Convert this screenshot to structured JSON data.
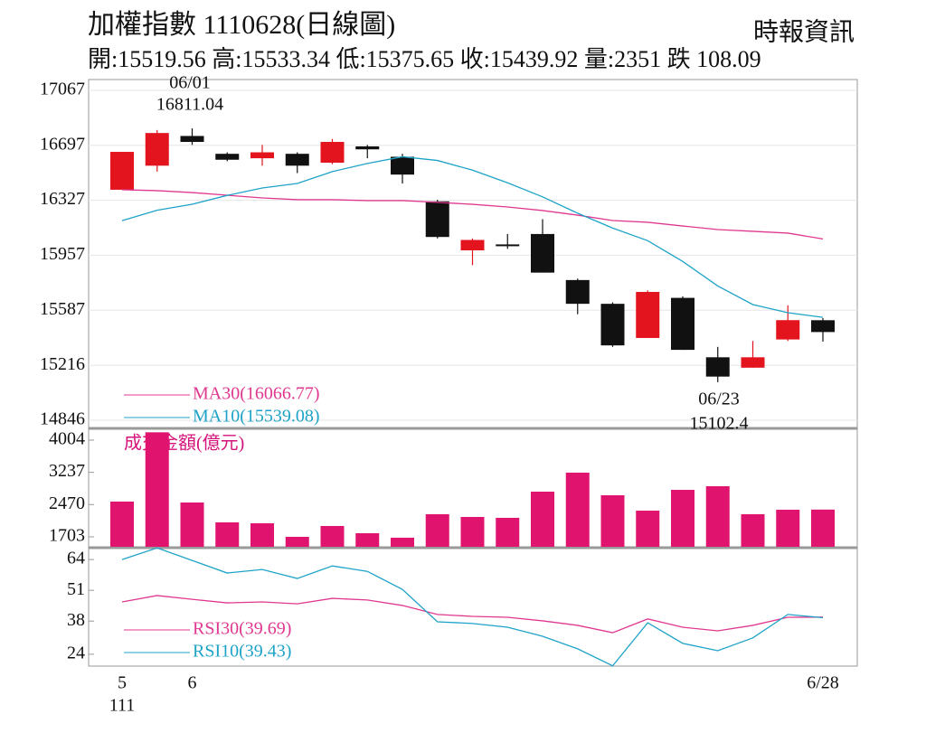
{
  "chart_data": [
    {
      "type": "candlestick",
      "title": "加權指數 1110628(日線圖)",
      "subtitle": "開:15519.56 高:15533.34 低:15375.65 收:15439.92 量:2351 跌 108.09",
      "source": "時報資訊",
      "categories": [
        "5",
        null,
        "6",
        null,
        null,
        null,
        null,
        null,
        null,
        null,
        null,
        null,
        null,
        null,
        null,
        null,
        null,
        null,
        null,
        null,
        "6/28"
      ],
      "x_year_label": "111",
      "open": [
        16398,
        16560,
        16760,
        16640,
        16610,
        16640,
        16580,
        16690,
        16620,
        16320,
        15990,
        16030,
        16100,
        15790,
        15630,
        15400,
        15670,
        15270,
        15200,
        15390,
        15519.56
      ],
      "high": [
        16653,
        16800,
        16811.04,
        16650,
        16700,
        16650,
        16740,
        16700,
        16640,
        16330,
        16070,
        16100,
        16200,
        15800,
        15640,
        15720,
        15680,
        15340,
        15380,
        15620,
        15533.34
      ],
      "low": [
        16398,
        16520,
        16700,
        16590,
        16560,
        16510,
        16570,
        16610,
        16440,
        16070,
        15890,
        16000,
        15840,
        15560,
        15340,
        15400,
        15320,
        15102.4,
        15200,
        15380,
        15375.65
      ],
      "close": [
        16653,
        16780,
        16720,
        16600,
        16650,
        16560,
        16720,
        16670,
        16500,
        16080,
        16060,
        16020,
        15840,
        15630,
        15350,
        15710,
        15320,
        15140,
        15270,
        15520,
        15439.92
      ],
      "up_color": "#e3141d",
      "down_color": "#111111",
      "series": [
        {
          "name": "MA30(16066.77)",
          "color": "#e0388f",
          "values": [
            16398,
            16392,
            16379,
            16361,
            16343,
            16331,
            16331,
            16325,
            16325,
            16313,
            16300,
            16282,
            16258,
            16227,
            16191,
            16179,
            16154,
            16130,
            16118,
            16106,
            16066.77
          ]
        },
        {
          "name": "MA10(15539.08)",
          "color": "#1ea3c8",
          "values": [
            16190,
            16260,
            16300,
            16360,
            16410,
            16440,
            16520,
            16575,
            16620,
            16595,
            16530,
            16445,
            16350,
            16240,
            16140,
            16055,
            15915,
            15750,
            15625,
            15570,
            15539.08
          ]
        }
      ],
      "annotations": [
        {
          "date": "06/01",
          "value": 16811.04
        },
        {
          "date": "06/23",
          "value": 15102.4
        }
      ],
      "ylim": [
        14846,
        17067
      ],
      "yticks": [
        14846,
        15216,
        15587,
        15957,
        16327,
        16697,
        17067
      ],
      "grid": true
    },
    {
      "type": "bar",
      "title": "成交金額(億元)",
      "color": "#e0146e",
      "values": [
        2542,
        4190,
        2520,
        2047,
        2026,
        1703,
        1961,
        1789,
        1682,
        2240,
        2176,
        2155,
        2778,
        3230,
        2692,
        2326,
        2821,
        2907,
        2240,
        2348,
        2351
      ],
      "ylim": [
        1466,
        4240
      ],
      "yticks": [
        1703,
        2470,
        3237,
        4004
      ],
      "grid": false
    },
    {
      "type": "line",
      "series": [
        {
          "name": "RSI30(39.69)",
          "color": "#e0388f",
          "values": [
            46.1,
            48.8,
            47.2,
            45.7,
            46.1,
            45.3,
            47.6,
            46.9,
            44.6,
            40.8,
            40,
            39.6,
            38.1,
            36.2,
            33.1,
            38.9,
            35.4,
            33.9,
            36.2,
            39.6,
            39.69
          ]
        },
        {
          "name": "RSI10(39.43)",
          "color": "#1ea3c8",
          "values": [
            64,
            68.9,
            63.6,
            58.3,
            59.8,
            56,
            61.3,
            59,
            51.4,
            37.7,
            37,
            35.4,
            31.6,
            26.3,
            19.1,
            37.3,
            28.6,
            25.5,
            30.9,
            40.8,
            39.43
          ]
        }
      ],
      "ylim": [
        19,
        69
      ],
      "yticks": [
        24,
        38,
        51,
        64
      ],
      "grid": false
    }
  ]
}
